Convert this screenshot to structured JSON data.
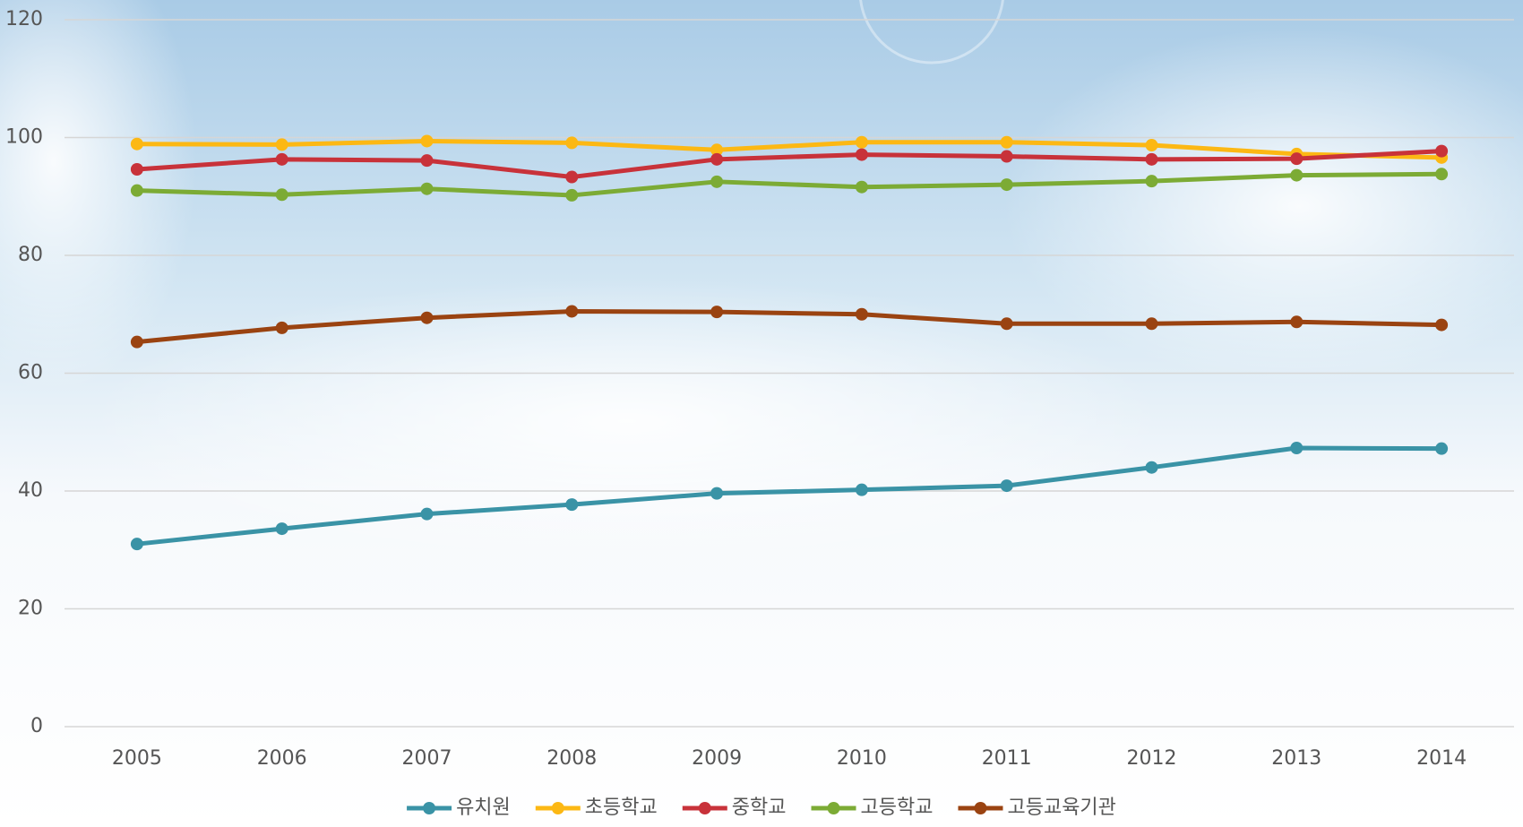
{
  "chart_data": {
    "type": "line",
    "categories": [
      "2005",
      "2006",
      "2007",
      "2008",
      "2009",
      "2010",
      "2011",
      "2012",
      "2013",
      "2014"
    ],
    "ylim": [
      0,
      120
    ],
    "yticks": [
      0,
      20,
      40,
      60,
      80,
      100,
      120
    ],
    "grid": true,
    "legend": "bottom",
    "series": [
      {
        "name": "유치원",
        "color": "#3a93a6",
        "values": [
          31.0,
          33.6,
          36.1,
          37.7,
          39.6,
          40.2,
          40.9,
          44.0,
          47.3,
          47.2
        ]
      },
      {
        "name": "초등학교",
        "color": "#fcb814",
        "values": [
          98.9,
          98.8,
          99.4,
          99.1,
          97.9,
          99.2,
          99.2,
          98.7,
          97.2,
          96.6
        ]
      },
      {
        "name": "중학교",
        "color": "#c8323a",
        "values": [
          94.6,
          96.3,
          96.1,
          93.3,
          96.3,
          97.1,
          96.8,
          96.3,
          96.4,
          97.7
        ]
      },
      {
        "name": "고등학교",
        "color": "#7cab35",
        "values": [
          91.0,
          90.3,
          91.3,
          90.2,
          92.5,
          91.6,
          92.0,
          92.6,
          93.6,
          93.8
        ]
      },
      {
        "name": "고등교육기관",
        "color": "#9a4311",
        "values": [
          65.3,
          67.7,
          69.4,
          70.5,
          70.4,
          70.0,
          68.4,
          68.4,
          68.7,
          68.2
        ]
      }
    ]
  }
}
